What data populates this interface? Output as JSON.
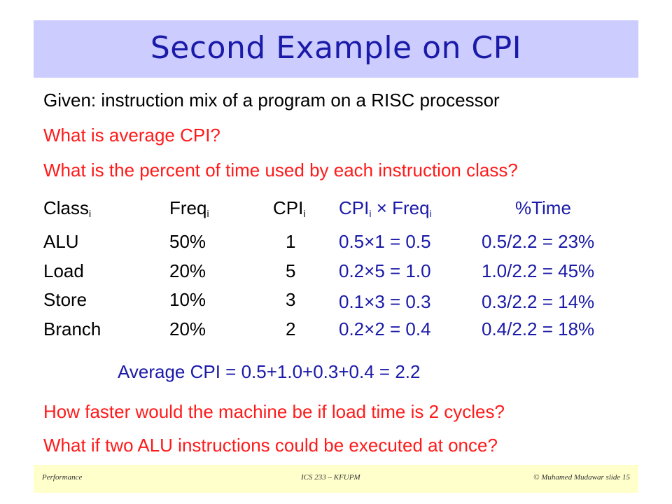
{
  "slide": {
    "title": "Second Example on CPI",
    "given": "Given: instruction mix of a program on a RISC processor",
    "q1": "What is average CPI?",
    "q2": "What is the percent of time used by each instruction class?",
    "average": "Average CPI = 0.5+1.0+0.3+0.4 = 2.2",
    "q3": "How faster would the machine be if load time is 2 cycles?",
    "q4": "What if two ALU instructions could be executed at once?"
  },
  "table": {
    "headers": {
      "class": "Class",
      "freq": "Freq",
      "cpi": "CPI",
      "product_a": "CPI",
      "product_b": " × Freq",
      "time": "%Time",
      "subscript": "i"
    },
    "rows": [
      {
        "class": "ALU",
        "freq": "50%",
        "cpi": "1",
        "product": "0.5×1 = 0.5",
        "time": "0.5/2.2 = 23%"
      },
      {
        "class": "Load",
        "freq": "20%",
        "cpi": "5",
        "product": "0.2×5 = 1.0",
        "time": "1.0/2.2 = 45%"
      },
      {
        "class": "Store",
        "freq": "10%",
        "cpi": "3",
        "product": "0.1×3 = 0.3",
        "time": "0.3/2.2 = 14%"
      },
      {
        "class": "Branch",
        "freq": "20%",
        "cpi": "2",
        "product": "0.2×2 = 0.4",
        "time": "0.4/2.2 = 18%"
      }
    ]
  },
  "footer": {
    "left": "Performance",
    "center": "ICS 233 – KFUPM",
    "right": "© Muhamed Mudawar  slide 15"
  },
  "colors": {
    "title_bg": "#ccccff",
    "title_text": "#1a1aa8",
    "question_red": "#ff1a1a",
    "highlight_blue": "#1a1aa8",
    "footer_bg": "#ffffcc"
  }
}
